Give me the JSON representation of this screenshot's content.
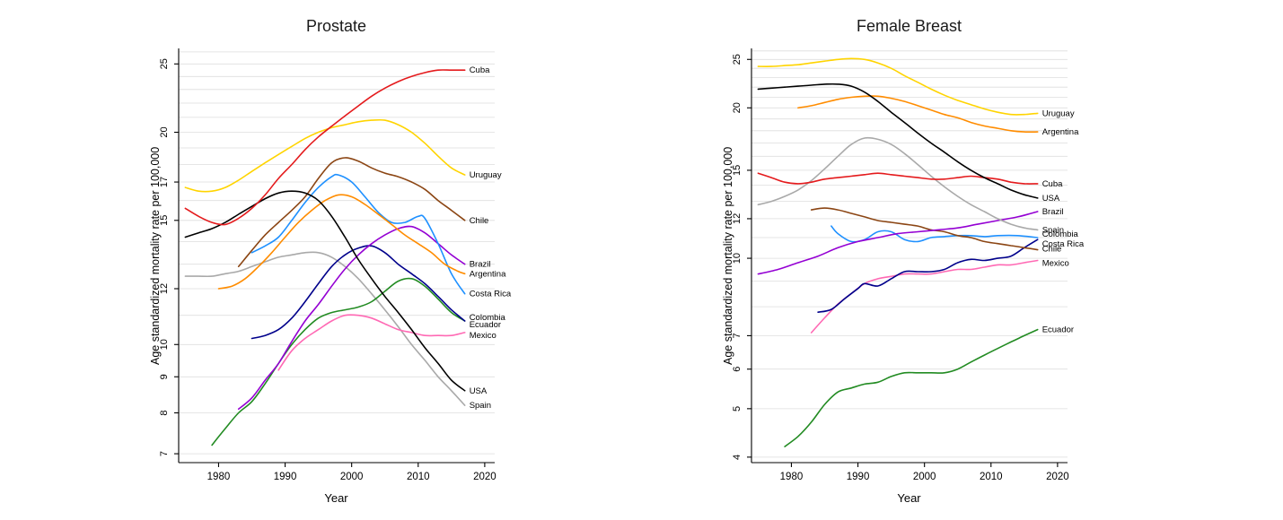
{
  "figure": {
    "background": "#ffffff"
  },
  "chart_data": [
    {
      "type": "line",
      "title": "Prostate",
      "xlabel": "Year",
      "ylabel": "Age standardized mortality rate per 100,000",
      "y_scale": "log",
      "grid": "horizontal",
      "x_range": [
        1974,
        2021.5
      ],
      "y_range": [
        6.8,
        26.3
      ],
      "x_ticks": [
        1980,
        1990,
        2000,
        2010,
        2020
      ],
      "y_ticks": [
        7,
        8,
        9,
        10,
        12,
        15,
        17,
        20,
        25
      ],
      "series": [
        {
          "name": "Spain",
          "color": "#a9a9a9",
          "x": [
            1975,
            1977,
            1979,
            1981,
            1983,
            1985,
            1987,
            1989,
            1991,
            1993,
            1995,
            1997,
            1999,
            2001,
            2003,
            2005,
            2007,
            2009,
            2011,
            2013,
            2015,
            2017
          ],
          "y": [
            12.5,
            12.5,
            12.5,
            12.6,
            12.7,
            12.9,
            13.1,
            13.3,
            13.4,
            13.5,
            13.5,
            13.3,
            12.9,
            12.4,
            11.8,
            11.2,
            10.6,
            10.0,
            9.5,
            9.0,
            8.6,
            8.2
          ]
        },
        {
          "name": "Mexico",
          "color": "#ff69b4",
          "label_dy": 3,
          "x": [
            1989,
            1991,
            1993,
            1995,
            1997,
            1999,
            2001,
            2003,
            2005,
            2007,
            2009,
            2011,
            2013,
            2015,
            2017
          ],
          "y": [
            9.2,
            9.8,
            10.2,
            10.5,
            10.8,
            11.0,
            11.0,
            10.9,
            10.7,
            10.5,
            10.4,
            10.3,
            10.3,
            10.3,
            10.4
          ]
        },
        {
          "name": "Ecuador",
          "color": "#228b22",
          "label_dy": 4,
          "x": [
            1979,
            1981,
            1983,
            1985,
            1987,
            1989,
            1991,
            1993,
            1995,
            1997,
            1999,
            2001,
            2003,
            2005,
            2007,
            2009,
            2011,
            2013,
            2015,
            2017
          ],
          "y": [
            7.2,
            7.6,
            8.0,
            8.3,
            8.8,
            9.4,
            10.0,
            10.5,
            10.9,
            11.1,
            11.2,
            11.3,
            11.5,
            11.9,
            12.3,
            12.4,
            12.1,
            11.6,
            11.1,
            10.8
          ]
        },
        {
          "name": "Colombia",
          "color": "#00008b",
          "label_dy": -4,
          "x": [
            1985,
            1987,
            1989,
            1991,
            1993,
            1995,
            1997,
            1999,
            2001,
            2003,
            2005,
            2007,
            2009,
            2011,
            2013,
            2015,
            2017
          ],
          "y": [
            10.2,
            10.3,
            10.5,
            10.9,
            11.5,
            12.2,
            12.9,
            13.4,
            13.7,
            13.8,
            13.5,
            13.0,
            12.6,
            12.2,
            11.7,
            11.2,
            10.8
          ]
        },
        {
          "name": "Brazil",
          "color": "#9400d3",
          "x": [
            1983,
            1985,
            1987,
            1989,
            1991,
            1993,
            1995,
            1997,
            1999,
            2001,
            2003,
            2005,
            2007,
            2009,
            2011,
            2013,
            2015,
            2017
          ],
          "y": [
            8.1,
            8.4,
            8.9,
            9.4,
            10.1,
            10.8,
            11.4,
            12.1,
            12.8,
            13.4,
            13.9,
            14.3,
            14.6,
            14.7,
            14.4,
            13.9,
            13.4,
            13.0
          ]
        },
        {
          "name": "Costa Rica",
          "color": "#1e90ff",
          "x": [
            1985,
            1987,
            1989,
            1991,
            1993,
            1995,
            1997,
            1998,
            2000,
            2002,
            2004,
            2006,
            2008,
            2010,
            2011,
            2013,
            2015,
            2017
          ],
          "y": [
            13.5,
            13.8,
            14.2,
            15.0,
            15.9,
            16.7,
            17.3,
            17.4,
            17.0,
            16.2,
            15.4,
            14.9,
            14.9,
            15.2,
            15.1,
            13.9,
            12.6,
            11.8
          ]
        },
        {
          "name": "Argentina",
          "color": "#ff8c00",
          "x": [
            1980,
            1982,
            1984,
            1986,
            1988,
            1990,
            1992,
            1994,
            1996,
            1998,
            2000,
            2002,
            2004,
            2006,
            2008,
            2010,
            2012,
            2014,
            2016,
            2017
          ],
          "y": [
            12.0,
            12.1,
            12.4,
            12.9,
            13.5,
            14.2,
            14.9,
            15.5,
            16.0,
            16.3,
            16.2,
            15.8,
            15.3,
            14.8,
            14.3,
            13.9,
            13.5,
            13.0,
            12.7,
            12.6
          ]
        },
        {
          "name": "Chile",
          "color": "#8b4513",
          "x": [
            1983,
            1985,
            1987,
            1989,
            1991,
            1993,
            1995,
            1997,
            1999,
            2001,
            2003,
            2005,
            2007,
            2009,
            2011,
            2013,
            2015,
            2017
          ],
          "y": [
            12.9,
            13.6,
            14.3,
            14.9,
            15.5,
            16.2,
            17.2,
            18.1,
            18.4,
            18.2,
            17.8,
            17.5,
            17.3,
            17.0,
            16.6,
            16.0,
            15.5,
            15.0
          ]
        },
        {
          "name": "Uruguay",
          "color": "#ffd400",
          "x": [
            1975,
            1977,
            1979,
            1981,
            1983,
            1985,
            1987,
            1989,
            1991,
            1993,
            1995,
            1997,
            1999,
            2001,
            2003,
            2005,
            2007,
            2009,
            2011,
            2013,
            2015,
            2017
          ],
          "y": [
            16.7,
            16.5,
            16.5,
            16.7,
            17.1,
            17.6,
            18.1,
            18.6,
            19.1,
            19.6,
            20.0,
            20.3,
            20.5,
            20.7,
            20.8,
            20.8,
            20.5,
            20.0,
            19.3,
            18.5,
            17.8,
            17.4
          ]
        },
        {
          "name": "USA",
          "color": "#000000",
          "x": [
            1975,
            1977,
            1979,
            1981,
            1983,
            1985,
            1987,
            1989,
            1991,
            1993,
            1995,
            1997,
            1999,
            2001,
            2003,
            2005,
            2007,
            2009,
            2011,
            2013,
            2015,
            2017
          ],
          "y": [
            14.2,
            14.4,
            14.6,
            14.9,
            15.3,
            15.7,
            16.1,
            16.4,
            16.5,
            16.4,
            16.0,
            15.2,
            14.2,
            13.2,
            12.4,
            11.7,
            11.1,
            10.5,
            9.9,
            9.4,
            8.9,
            8.6
          ]
        },
        {
          "name": "Cuba",
          "color": "#e41a1c",
          "x": [
            1975,
            1977,
            1979,
            1981,
            1983,
            1985,
            1987,
            1989,
            1991,
            1993,
            1995,
            1997,
            1999,
            2001,
            2003,
            2005,
            2007,
            2009,
            2011,
            2013,
            2015,
            2017
          ],
          "y": [
            15.6,
            15.2,
            14.9,
            14.8,
            15.1,
            15.6,
            16.3,
            17.2,
            18.0,
            18.9,
            19.7,
            20.4,
            21.1,
            21.8,
            22.5,
            23.1,
            23.6,
            24.0,
            24.3,
            24.5,
            24.5,
            24.5
          ]
        }
      ]
    },
    {
      "type": "line",
      "title": "Female Breast",
      "xlabel": "Year",
      "ylabel": "Age standardized mortality rate per 100,000",
      "y_scale": "log",
      "grid": "horizontal",
      "x_range": [
        1974,
        2021.5
      ],
      "y_range": [
        3.9,
        26.3
      ],
      "x_ticks": [
        1980,
        1990,
        2000,
        2010,
        2020
      ],
      "y_ticks": [
        4,
        5,
        6,
        7,
        10,
        12,
        15,
        20,
        25
      ],
      "series": [
        {
          "name": "Ecuador",
          "color": "#228b22",
          "x": [
            1979,
            1981,
            1983,
            1985,
            1987,
            1989,
            1991,
            1993,
            1995,
            1997,
            1999,
            2001,
            2003,
            2005,
            2007,
            2009,
            2011,
            2013,
            2015,
            2017
          ],
          "y": [
            4.2,
            4.4,
            4.7,
            5.1,
            5.4,
            5.5,
            5.6,
            5.65,
            5.8,
            5.9,
            5.9,
            5.9,
            5.9,
            6.0,
            6.2,
            6.4,
            6.6,
            6.8,
            7.0,
            7.2
          ]
        },
        {
          "name": "Mexico",
          "color": "#ff69b4",
          "label_dy": 3,
          "x": [
            1983,
            1985,
            1987,
            1989,
            1991,
            1993,
            1995,
            1997,
            1999,
            2001,
            2003,
            2005,
            2007,
            2009,
            2011,
            2013,
            2015,
            2017
          ],
          "y": [
            7.1,
            7.6,
            8.1,
            8.5,
            8.9,
            9.1,
            9.2,
            9.3,
            9.3,
            9.3,
            9.4,
            9.5,
            9.5,
            9.6,
            9.7,
            9.7,
            9.8,
            9.9
          ]
        },
        {
          "name": "Costa Rica",
          "color": "#00008b",
          "label_dy": 5,
          "x": [
            1984,
            1986,
            1988,
            1990,
            1991,
            1993,
            1995,
            1997,
            1999,
            2001,
            2003,
            2005,
            2007,
            2009,
            2011,
            2013,
            2015,
            2017
          ],
          "y": [
            7.8,
            7.9,
            8.3,
            8.7,
            8.9,
            8.8,
            9.1,
            9.4,
            9.4,
            9.4,
            9.5,
            9.8,
            9.95,
            9.9,
            10.0,
            10.1,
            10.5,
            10.9
          ]
        },
        {
          "name": "Colombia",
          "color": "#1e90ff",
          "label_dy": -4,
          "x": [
            1986,
            1987,
            1989,
            1991,
            1993,
            1995,
            1997,
            1999,
            2001,
            2003,
            2005,
            2007,
            2009,
            2011,
            2014,
            2017
          ],
          "y": [
            11.6,
            11.2,
            10.8,
            10.9,
            11.3,
            11.3,
            10.9,
            10.8,
            11.0,
            11.05,
            11.1,
            11.1,
            11.05,
            11.1,
            11.1,
            11.0
          ]
        },
        {
          "name": "Chile",
          "color": "#8b4513",
          "label_dy": -1,
          "x": [
            1983,
            1985,
            1987,
            1989,
            1991,
            1993,
            1995,
            1997,
            1999,
            2001,
            2003,
            2005,
            2007,
            2009,
            2011,
            2013,
            2015,
            2017
          ],
          "y": [
            12.5,
            12.6,
            12.5,
            12.3,
            12.1,
            11.9,
            11.8,
            11.7,
            11.6,
            11.4,
            11.3,
            11.1,
            11.0,
            10.8,
            10.7,
            10.6,
            10.5,
            10.4
          ]
        },
        {
          "name": "Brazil",
          "color": "#9400d3",
          "x": [
            1975,
            1978,
            1981,
            1984,
            1987,
            1990,
            1993,
            1996,
            1999,
            2002,
            2005,
            2008,
            2011,
            2014,
            2017
          ],
          "y": [
            9.3,
            9.5,
            9.8,
            10.1,
            10.5,
            10.8,
            11.0,
            11.2,
            11.3,
            11.4,
            11.5,
            11.7,
            11.9,
            12.1,
            12.4
          ]
        },
        {
          "name": "Spain",
          "color": "#a9a9a9",
          "x": [
            1975,
            1977,
            1979,
            1981,
            1983,
            1985,
            1987,
            1989,
            1991,
            1993,
            1995,
            1997,
            1999,
            2001,
            2003,
            2005,
            2007,
            2009,
            2011,
            2013,
            2015,
            2017
          ],
          "y": [
            12.8,
            13.0,
            13.3,
            13.7,
            14.3,
            15.1,
            16.0,
            16.9,
            17.4,
            17.3,
            16.9,
            16.2,
            15.4,
            14.6,
            13.9,
            13.3,
            12.8,
            12.4,
            12.0,
            11.7,
            11.5,
            11.4
          ]
        },
        {
          "name": "Cuba",
          "color": "#e41a1c",
          "x": [
            1975,
            1977,
            1979,
            1981,
            1983,
            1985,
            1987,
            1989,
            1991,
            1993,
            1995,
            1997,
            1999,
            2001,
            2003,
            2005,
            2007,
            2009,
            2011,
            2013,
            2015,
            2017
          ],
          "y": [
            14.8,
            14.5,
            14.2,
            14.1,
            14.2,
            14.4,
            14.5,
            14.6,
            14.7,
            14.8,
            14.7,
            14.6,
            14.5,
            14.4,
            14.4,
            14.5,
            14.6,
            14.5,
            14.4,
            14.2,
            14.1,
            14.1
          ]
        },
        {
          "name": "Argentina",
          "color": "#ff8c00",
          "x": [
            1981,
            1983,
            1985,
            1987,
            1989,
            1991,
            1993,
            1995,
            1997,
            1999,
            2001,
            2003,
            2005,
            2007,
            2009,
            2011,
            2013,
            2015,
            2017
          ],
          "y": [
            20.0,
            20.2,
            20.5,
            20.8,
            21.0,
            21.1,
            21.1,
            20.9,
            20.6,
            20.2,
            19.8,
            19.4,
            19.1,
            18.7,
            18.4,
            18.2,
            18.0,
            17.9,
            17.9
          ]
        },
        {
          "name": "USA",
          "color": "#000000",
          "x": [
            1975,
            1977,
            1979,
            1981,
            1983,
            1985,
            1987,
            1989,
            1991,
            1993,
            1995,
            1997,
            1999,
            2001,
            2003,
            2005,
            2007,
            2009,
            2011,
            2013,
            2015,
            2017
          ],
          "y": [
            21.8,
            21.9,
            22.0,
            22.1,
            22.2,
            22.3,
            22.3,
            22.1,
            21.5,
            20.6,
            19.6,
            18.7,
            17.8,
            17.0,
            16.3,
            15.6,
            15.0,
            14.5,
            14.1,
            13.7,
            13.4,
            13.2
          ]
        },
        {
          "name": "Uruguay",
          "color": "#ffd400",
          "x": [
            1975,
            1977,
            1979,
            1981,
            1983,
            1985,
            1987,
            1989,
            1991,
            1993,
            1995,
            1997,
            1999,
            2001,
            2003,
            2005,
            2007,
            2009,
            2011,
            2013,
            2015,
            2017
          ],
          "y": [
            24.2,
            24.2,
            24.3,
            24.4,
            24.6,
            24.8,
            25.0,
            25.1,
            25.0,
            24.6,
            24.0,
            23.2,
            22.5,
            21.8,
            21.2,
            20.7,
            20.3,
            19.9,
            19.6,
            19.4,
            19.4,
            19.5
          ]
        }
      ]
    }
  ],
  "style": {
    "grid_color": "#dedede",
    "axis_color": "#000000",
    "line_width": 1.6
  }
}
